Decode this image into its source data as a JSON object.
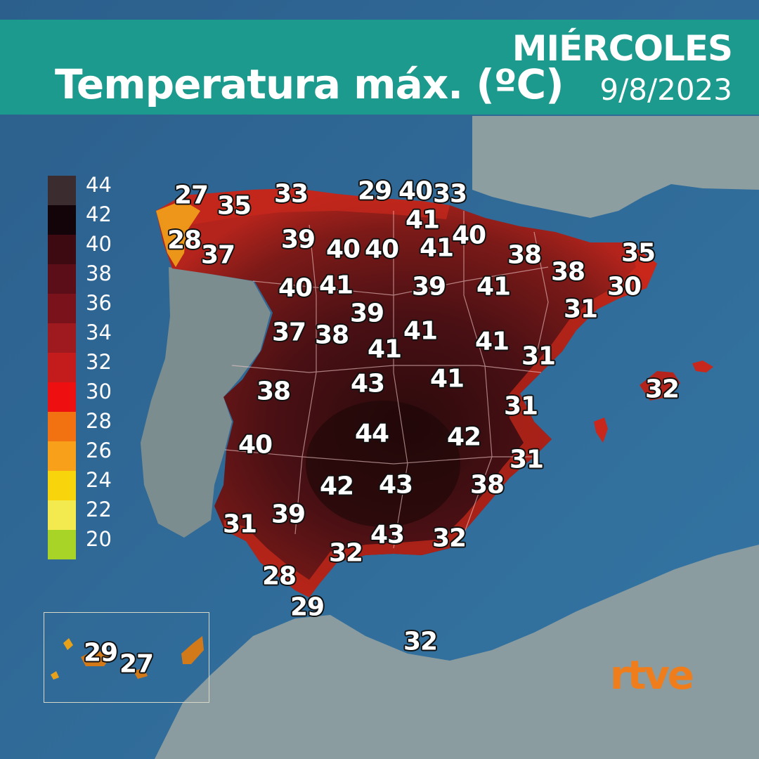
{
  "header": {
    "title": "Temperatura máx. (ºC)",
    "day": "MIÉRCOLES",
    "date": "9/8/2023"
  },
  "legend": {
    "items": [
      {
        "label": "44",
        "color": "#3a2c2f"
      },
      {
        "label": "42",
        "color": "#120408"
      },
      {
        "label": "40",
        "color": "#3d0a12"
      },
      {
        "label": "38",
        "color": "#5c0e18"
      },
      {
        "label": "36",
        "color": "#7a121c"
      },
      {
        "label": "34",
        "color": "#9e1a1e"
      },
      {
        "label": "32",
        "color": "#c41c1c"
      },
      {
        "label": "30",
        "color": "#ee1010"
      },
      {
        "label": "28",
        "color": "#f27212"
      },
      {
        "label": "26",
        "color": "#f8a01a"
      },
      {
        "label": "24",
        "color": "#f7d40c"
      },
      {
        "label": "22",
        "color": "#f2ea4e"
      },
      {
        "label": "20",
        "color": "#a8d428"
      }
    ]
  },
  "temperatures": [
    {
      "id": "galicia-corunna-coast",
      "value": "27"
    },
    {
      "id": "galicia-coruna",
      "value": "35"
    },
    {
      "id": "asturias",
      "value": "33"
    },
    {
      "id": "vizcaya",
      "value": "29"
    },
    {
      "id": "guipuzcoa",
      "value": "40"
    },
    {
      "id": "navarra-north",
      "value": "33"
    },
    {
      "id": "pontevedra-coast",
      "value": "28"
    },
    {
      "id": "orense",
      "value": "37"
    },
    {
      "id": "leon",
      "value": "39"
    },
    {
      "id": "palencia",
      "value": "40"
    },
    {
      "id": "burgos",
      "value": "40"
    },
    {
      "id": "la-rioja",
      "value": "41"
    },
    {
      "id": "navarra",
      "value": "41"
    },
    {
      "id": "huesca",
      "value": "40"
    },
    {
      "id": "lleida",
      "value": "38"
    },
    {
      "id": "girona",
      "value": "35"
    },
    {
      "id": "barcelona-interior",
      "value": "38"
    },
    {
      "id": "barcelona",
      "value": "30"
    },
    {
      "id": "zamora",
      "value": "40"
    },
    {
      "id": "valladolid",
      "value": "41"
    },
    {
      "id": "soria",
      "value": "39"
    },
    {
      "id": "zaragoza",
      "value": "41"
    },
    {
      "id": "tarragona",
      "value": "31"
    },
    {
      "id": "segovia",
      "value": "39"
    },
    {
      "id": "salamanca",
      "value": "37"
    },
    {
      "id": "avila",
      "value": "38"
    },
    {
      "id": "madrid",
      "value": "41"
    },
    {
      "id": "guadalajara",
      "value": "41"
    },
    {
      "id": "teruel",
      "value": "41"
    },
    {
      "id": "castellon",
      "value": "31"
    },
    {
      "id": "caceres",
      "value": "38"
    },
    {
      "id": "toledo",
      "value": "43"
    },
    {
      "id": "cuenca",
      "value": "41"
    },
    {
      "id": "valencia",
      "value": "31"
    },
    {
      "id": "badajoz",
      "value": "40"
    },
    {
      "id": "ciudad-real",
      "value": "44"
    },
    {
      "id": "albacete",
      "value": "42"
    },
    {
      "id": "alicante",
      "value": "31"
    },
    {
      "id": "cordoba",
      "value": "42"
    },
    {
      "id": "jaen",
      "value": "43"
    },
    {
      "id": "murcia",
      "value": "38"
    },
    {
      "id": "huelva",
      "value": "31"
    },
    {
      "id": "sevilla",
      "value": "39"
    },
    {
      "id": "granada",
      "value": "43"
    },
    {
      "id": "almeria",
      "value": "32"
    },
    {
      "id": "malaga",
      "value": "32"
    },
    {
      "id": "cadiz",
      "value": "28"
    },
    {
      "id": "tarifa",
      "value": "29"
    },
    {
      "id": "melilla",
      "value": "32"
    },
    {
      "id": "baleares",
      "value": "32"
    },
    {
      "id": "tenerife",
      "value": "29"
    },
    {
      "id": "gran-canaria",
      "value": "27"
    }
  ],
  "logo": {
    "text": "rtve",
    "color": "#f07d1c"
  }
}
